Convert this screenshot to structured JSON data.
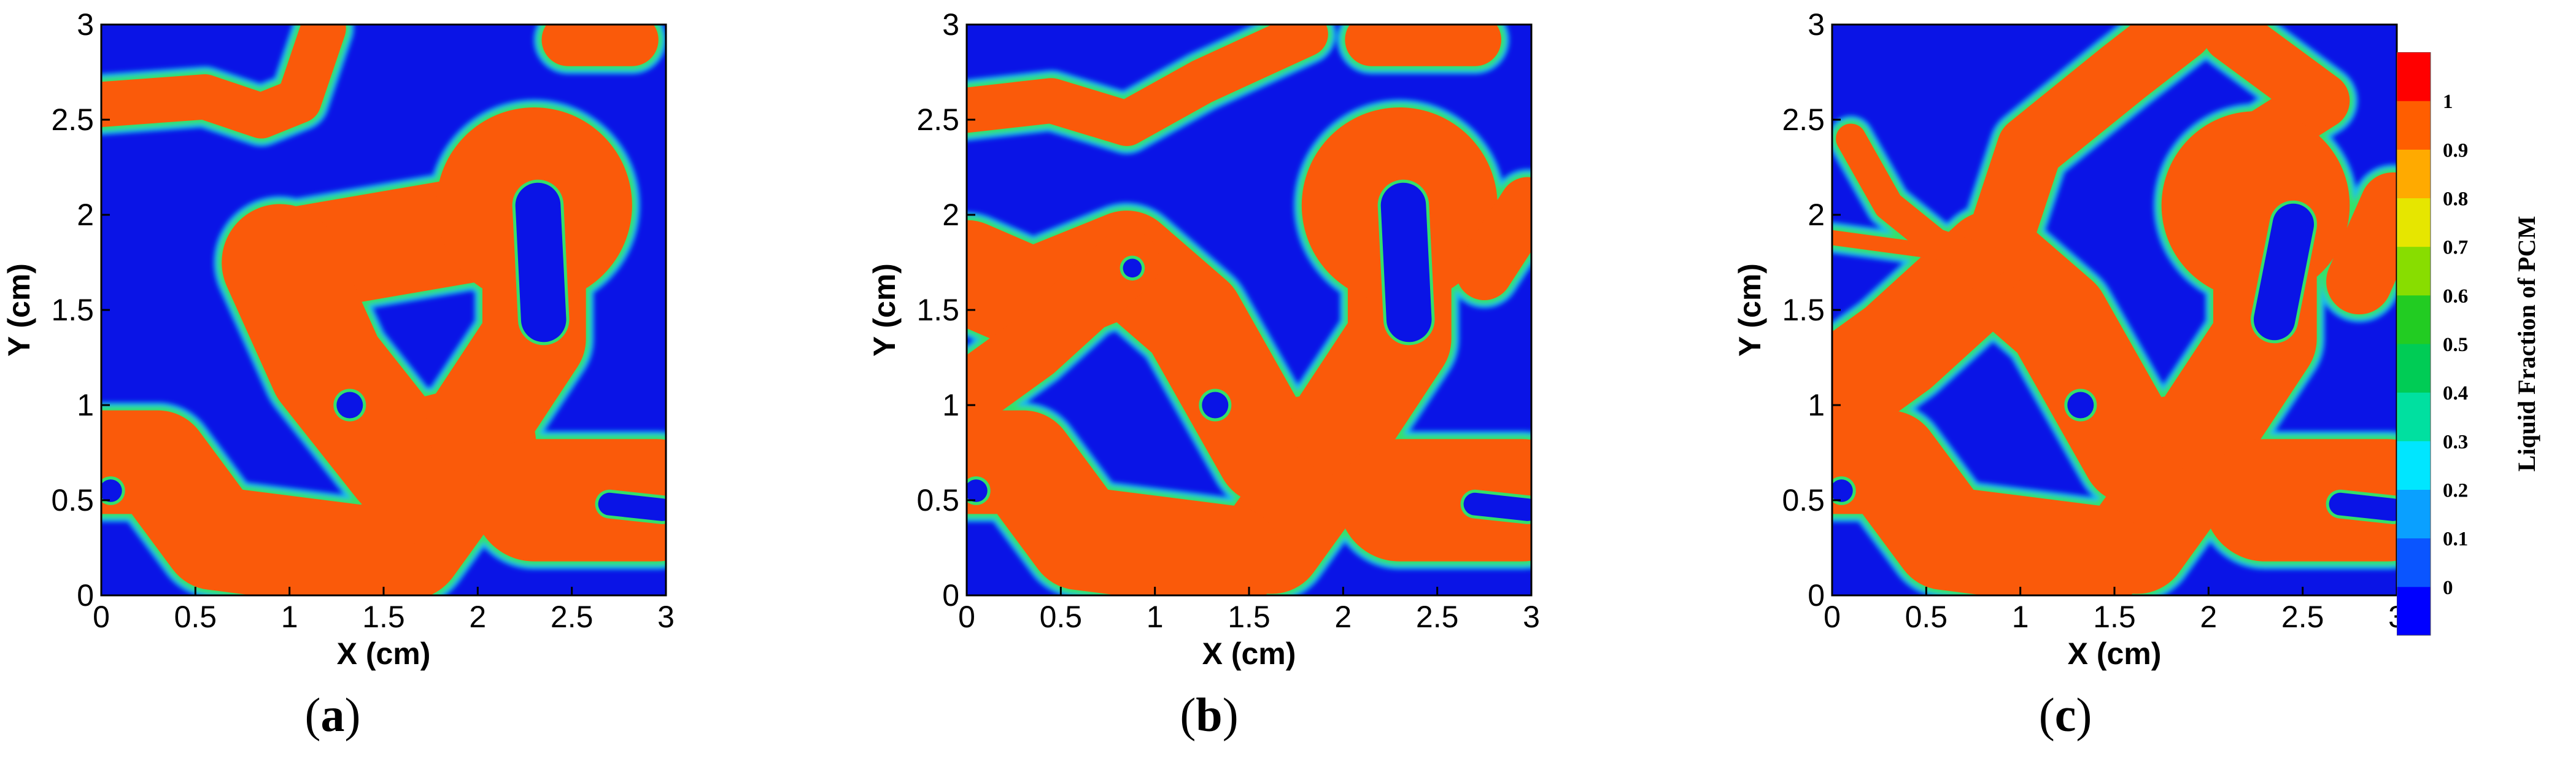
{
  "chart_data": [
    {
      "type": "heatmap",
      "panel_label": "a",
      "xlabel": "X (cm)",
      "ylabel": "Y (cm)",
      "xlim": [
        0,
        3
      ],
      "ylim": [
        0,
        3
      ],
      "x_ticks": [
        "0",
        "0.5",
        "1",
        "1.5",
        "2",
        "2.5",
        "3"
      ],
      "y_ticks": [
        "0",
        "0.5",
        "1",
        "1.5",
        "2",
        "2.5",
        "3"
      ],
      "liquid_regions": [
        {
          "shape": "band",
          "points": [
            [
              0.0,
              2.58
            ],
            [
              0.55,
              2.62
            ],
            [
              0.85,
              2.52
            ],
            [
              1.05,
              2.6
            ],
            [
              1.18,
              2.98
            ]
          ],
          "width": 0.24
        },
        {
          "shape": "band",
          "points": [
            [
              2.48,
              2.92
            ],
            [
              2.82,
              2.92
            ]
          ],
          "width": 0.28
        },
        {
          "shape": "blob",
          "points": [
            [
              0.95,
              1.75
            ],
            [
              1.95,
              1.92
            ]
          ],
          "r": 0.28
        },
        {
          "shape": "band",
          "points": [
            [
              0.95,
              1.75
            ],
            [
              1.2,
              1.2
            ],
            [
              1.6,
              0.7
            ],
            [
              2.0,
              0.8
            ],
            [
              1.62,
              0.28
            ]
          ],
          "width": 0.62
        },
        {
          "shape": "band",
          "points": [
            [
              2.3,
              1.95
            ],
            [
              2.3,
              1.35
            ],
            [
              2.0,
              0.9
            ]
          ],
          "width": 0.55
        },
        {
          "shape": "blob",
          "points": [
            [
              2.3,
              2.05
            ]
          ],
          "r": 0.52
        },
        {
          "shape": "band",
          "points": [
            [
              0.0,
              0.7
            ],
            [
              0.3,
              0.7
            ],
            [
              0.6,
              0.3
            ],
            [
              1.4,
              0.2
            ]
          ],
          "width": 0.55
        },
        {
          "shape": "band",
          "points": [
            [
              2.3,
              0.5
            ],
            [
              2.95,
              0.5
            ]
          ],
          "width": 0.65
        }
      ],
      "solid_pockets": [
        {
          "points": [
            [
              2.32,
              2.05
            ],
            [
              2.35,
              1.45
            ]
          ],
          "r": 0.12
        },
        {
          "points": [
            [
              1.32,
              1.0
            ]
          ],
          "r": 0.07
        },
        {
          "points": [
            [
              0.05,
              0.55
            ]
          ],
          "r": 0.06
        },
        {
          "points": [
            [
              2.7,
              0.48
            ],
            [
              2.98,
              0.45
            ]
          ],
          "r": 0.06
        }
      ]
    },
    {
      "type": "heatmap",
      "panel_label": "b",
      "xlabel": "X (cm)",
      "ylabel": "Y (cm)",
      "xlim": [
        0,
        3
      ],
      "ylim": [
        0,
        3
      ],
      "x_ticks": [
        "0",
        "0.5",
        "1",
        "1.5",
        "2",
        "2.5",
        "3"
      ],
      "y_ticks": [
        "0",
        "0.5",
        "1",
        "1.5",
        "2",
        "2.5",
        "3"
      ],
      "liquid_regions": [
        {
          "shape": "band",
          "points": [
            [
              0.0,
              2.55
            ],
            [
              0.45,
              2.6
            ],
            [
              0.85,
              2.48
            ],
            [
              1.25,
              2.7
            ],
            [
              1.8,
              2.95
            ]
          ],
          "width": 0.24
        },
        {
          "shape": "band",
          "points": [
            [
              2.15,
              2.92
            ],
            [
              2.7,
              2.92
            ]
          ],
          "width": 0.28
        },
        {
          "shape": "band",
          "points": [
            [
              0.0,
              1.7
            ],
            [
              0.35,
              1.55
            ],
            [
              0.85,
              1.75
            ],
            [
              1.2,
              1.45
            ],
            [
              1.6,
              0.75
            ],
            [
              2.0,
              0.8
            ],
            [
              1.62,
              0.28
            ]
          ],
          "width": 0.55
        },
        {
          "shape": "band",
          "points": [
            [
              0.0,
              1.05
            ],
            [
              0.35,
              1.3
            ],
            [
              0.85,
              1.75
            ]
          ],
          "width": 0.35
        },
        {
          "shape": "band",
          "points": [
            [
              2.3,
              1.95
            ],
            [
              2.3,
              1.35
            ],
            [
              2.0,
              0.9
            ]
          ],
          "width": 0.55
        },
        {
          "shape": "blob",
          "points": [
            [
              2.3,
              2.05
            ]
          ],
          "r": 0.52
        },
        {
          "shape": "band",
          "points": [
            [
              2.75,
              1.7
            ],
            [
              2.98,
              2.05
            ]
          ],
          "width": 0.3
        },
        {
          "shape": "band",
          "points": [
            [
              0.0,
              0.7
            ],
            [
              0.3,
              0.7
            ],
            [
              0.6,
              0.3
            ],
            [
              1.4,
              0.2
            ]
          ],
          "width": 0.55
        },
        {
          "shape": "band",
          "points": [
            [
              2.3,
              0.5
            ],
            [
              2.95,
              0.5
            ]
          ],
          "width": 0.65
        }
      ],
      "solid_pockets": [
        {
          "points": [
            [
              2.32,
              2.05
            ],
            [
              2.35,
              1.45
            ]
          ],
          "r": 0.12
        },
        {
          "points": [
            [
              1.32,
              1.0
            ]
          ],
          "r": 0.07
        },
        {
          "points": [
            [
              0.88,
              1.72
            ]
          ],
          "r": 0.05
        },
        {
          "points": [
            [
              0.05,
              0.55
            ]
          ],
          "r": 0.06
        },
        {
          "points": [
            [
              2.7,
              0.48
            ],
            [
              2.98,
              0.45
            ]
          ],
          "r": 0.06
        }
      ]
    },
    {
      "type": "heatmap",
      "panel_label": "c",
      "xlabel": "X (cm)",
      "ylabel": "Y (cm)",
      "xlim": [
        0,
        3
      ],
      "ylim": [
        0,
        3
      ],
      "x_ticks": [
        "0",
        "0.5",
        "1",
        "1.5",
        "2",
        "2.5",
        "3"
      ],
      "y_ticks": [
        "0",
        "0.5",
        "1",
        "1.5",
        "2",
        "2.5",
        "3"
      ],
      "liquid_regions": [
        {
          "shape": "band",
          "points": [
            [
              0.0,
              1.05
            ],
            [
              0.35,
              1.3
            ],
            [
              0.85,
              1.75
            ],
            [
              1.2,
              1.45
            ],
            [
              1.6,
              0.75
            ],
            [
              2.0,
              0.8
            ],
            [
              1.62,
              0.28
            ]
          ],
          "width": 0.55
        },
        {
          "shape": "band",
          "points": [
            [
              0.85,
              1.75
            ],
            [
              1.05,
              2.35
            ],
            [
              1.55,
              2.75
            ],
            [
              1.85,
              2.98
            ]
          ],
          "width": 0.35
        },
        {
          "shape": "band",
          "points": [
            [
              0.1,
              2.4
            ],
            [
              0.3,
              2.05
            ],
            [
              0.55,
              1.85
            ],
            [
              0.85,
              1.75
            ]
          ],
          "width": 0.16
        },
        {
          "shape": "band",
          "points": [
            [
              0.0,
              1.88
            ],
            [
              0.6,
              1.8
            ]
          ],
          "width": 0.08
        },
        {
          "shape": "band",
          "points": [
            [
              2.12,
              2.95
            ],
            [
              2.6,
              2.6
            ],
            [
              2.2,
              2.35
            ]
          ],
          "width": 0.3
        },
        {
          "shape": "band",
          "points": [
            [
              2.3,
              1.95
            ],
            [
              2.3,
              1.35
            ],
            [
              2.0,
              0.9
            ]
          ],
          "width": 0.55
        },
        {
          "shape": "blob",
          "points": [
            [
              2.25,
              2.05
            ]
          ],
          "r": 0.5
        },
        {
          "shape": "band",
          "points": [
            [
              2.8,
              1.65
            ],
            [
              2.98,
              2.05
            ]
          ],
          "width": 0.35
        },
        {
          "shape": "band",
          "points": [
            [
              0.0,
              0.7
            ],
            [
              0.3,
              0.7
            ],
            [
              0.6,
              0.3
            ],
            [
              1.4,
              0.2
            ]
          ],
          "width": 0.55
        },
        {
          "shape": "band",
          "points": [
            [
              2.3,
              0.5
            ],
            [
              2.95,
              0.5
            ]
          ],
          "width": 0.65
        }
      ],
      "solid_pockets": [
        {
          "points": [
            [
              2.45,
              1.95
            ],
            [
              2.35,
              1.45
            ]
          ],
          "r": 0.11
        },
        {
          "points": [
            [
              1.32,
              1.0
            ]
          ],
          "r": 0.07
        },
        {
          "points": [
            [
              0.05,
              0.55
            ]
          ],
          "r": 0.06
        },
        {
          "points": [
            [
              2.7,
              0.48
            ],
            [
              2.98,
              0.45
            ]
          ],
          "r": 0.06
        }
      ]
    }
  ],
  "legend": {
    "title": "Liquid Fraction of PCM",
    "ticks": [
      "0",
      "0.1",
      "0.2",
      "0.3",
      "0.4",
      "0.5",
      "0.6",
      "0.7",
      "0.8",
      "0.9",
      "1"
    ],
    "placement": "right",
    "colors": [
      "#0000ff",
      "#0a55ff",
      "#0aa0ff",
      "#00e6ff",
      "#00e0a0",
      "#00cc55",
      "#22cc22",
      "#88dd00",
      "#e6e600",
      "#ffaa00",
      "#ff5e00",
      "#ff0000"
    ]
  },
  "colors": {
    "solid": "#0a14e6",
    "liquid": "#fa5a0a",
    "interface": "#34e06a"
  }
}
